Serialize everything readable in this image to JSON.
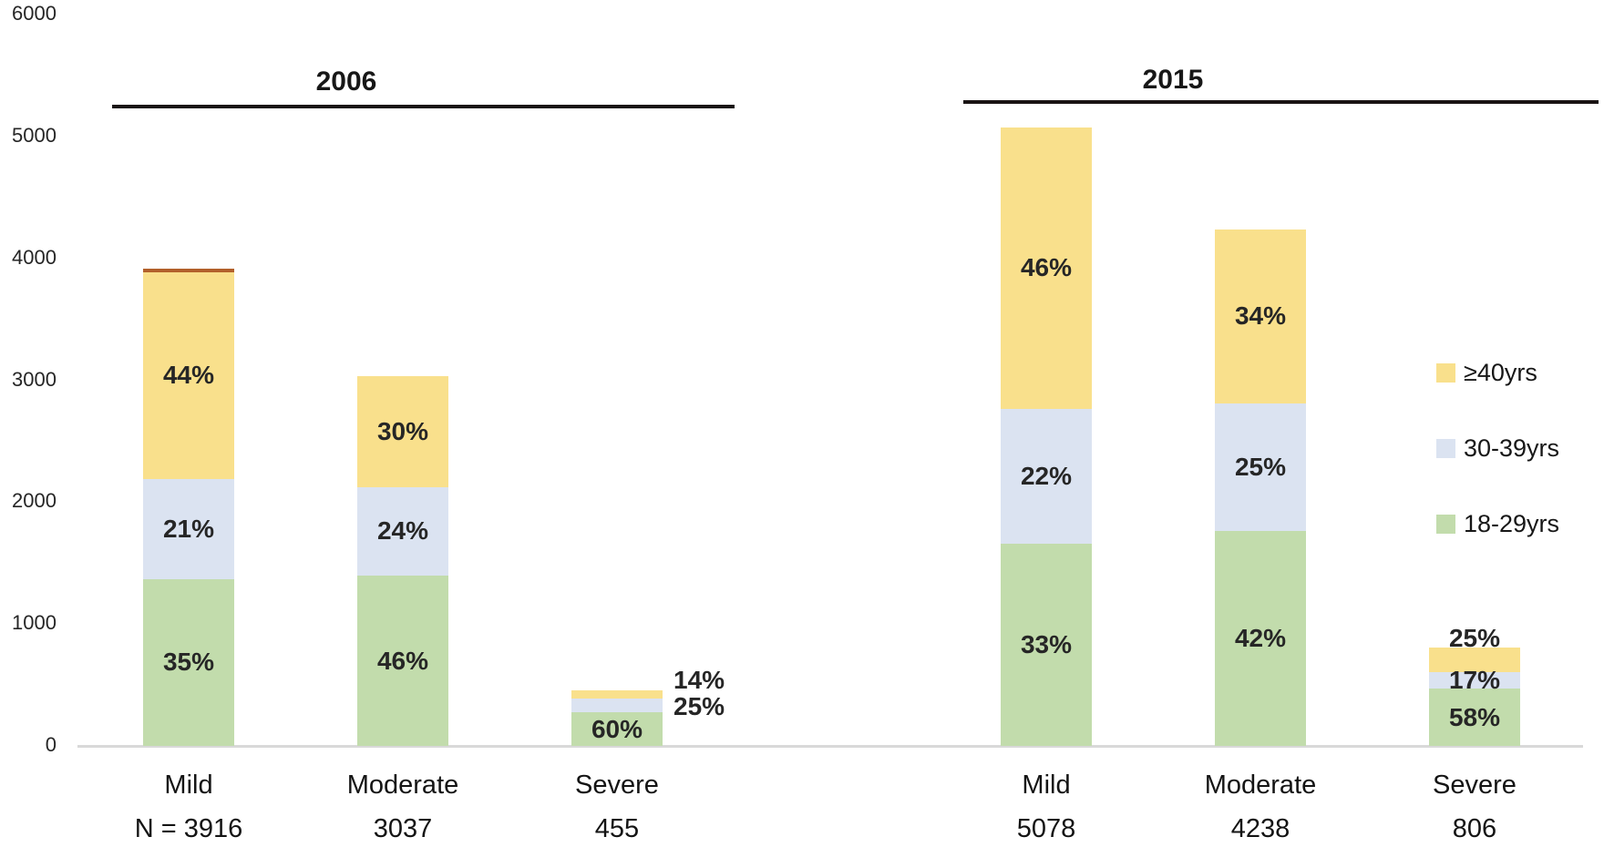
{
  "chart_data": {
    "type": "bar",
    "stacked": true,
    "grid": false,
    "legend_position": "right",
    "ylim": [
      0,
      6000
    ],
    "y_ticks": [
      0,
      1000,
      2000,
      3000,
      4000,
      5000,
      6000
    ],
    "legend": [
      {
        "label": "≥40yrs",
        "series": "≥40yrs",
        "color": "#f9e08c"
      },
      {
        "label": "30-39yrs",
        "series": "30-39yrs",
        "color": "#dbe3f1"
      },
      {
        "label": "18-29yrs",
        "series": "18-29yrs",
        "color": "#c2dcac"
      }
    ],
    "groups": [
      {
        "year": "2006",
        "bars": [
          {
            "category": "Mild",
            "n_label": "N = 3916",
            "n": 3916,
            "top_accent": true,
            "segments": [
              {
                "series": "18-29yrs",
                "pct": 35,
                "label": "35%",
                "label_pos": "inside"
              },
              {
                "series": "30-39yrs",
                "pct": 21,
                "label": "21%",
                "label_pos": "inside"
              },
              {
                "series": "≥40yrs",
                "pct": 44,
                "label": "44%",
                "label_pos": "inside"
              }
            ]
          },
          {
            "category": "Moderate",
            "n_label": "3037",
            "n": 3037,
            "top_accent": false,
            "segments": [
              {
                "series": "18-29yrs",
                "pct": 46,
                "label": "46%",
                "label_pos": "inside"
              },
              {
                "series": "30-39yrs",
                "pct": 24,
                "label": "24%",
                "label_pos": "inside"
              },
              {
                "series": "≥40yrs",
                "pct": 30,
                "label": "30%",
                "label_pos": "inside"
              }
            ]
          },
          {
            "category": "Severe",
            "n_label": "455",
            "n": 455,
            "top_accent": false,
            "segments": [
              {
                "series": "18-29yrs",
                "pct": 60,
                "label": "60%",
                "label_pos": "inside"
              },
              {
                "series": "30-39yrs",
                "pct": 25,
                "label": "25%",
                "label_pos": "right"
              },
              {
                "series": "≥40yrs",
                "pct": 14,
                "label": "14%",
                "label_pos": "right"
              }
            ]
          }
        ]
      },
      {
        "year": "2015",
        "bars": [
          {
            "category": "Mild",
            "n_label": "5078",
            "n": 5078,
            "top_accent": false,
            "segments": [
              {
                "series": "18-29yrs",
                "pct": 33,
                "label": "33%",
                "label_pos": "inside"
              },
              {
                "series": "30-39yrs",
                "pct": 22,
                "label": "22%",
                "label_pos": "inside"
              },
              {
                "series": "≥40yrs",
                "pct": 46,
                "label": "46%",
                "label_pos": "inside"
              }
            ]
          },
          {
            "category": "Moderate",
            "n_label": "4238",
            "n": 4238,
            "top_accent": false,
            "segments": [
              {
                "series": "18-29yrs",
                "pct": 42,
                "label": "42%",
                "label_pos": "inside"
              },
              {
                "series": "30-39yrs",
                "pct": 25,
                "label": "25%",
                "label_pos": "inside"
              },
              {
                "series": "≥40yrs",
                "pct": 34,
                "label": "34%",
                "label_pos": "inside"
              }
            ]
          },
          {
            "category": "Severe",
            "n_label": "806",
            "n": 806,
            "top_accent": false,
            "segments": [
              {
                "series": "18-29yrs",
                "pct": 58,
                "label": "58%",
                "label_pos": "inside"
              },
              {
                "series": "30-39yrs",
                "pct": 17,
                "label": "17%",
                "label_pos": "inside"
              },
              {
                "series": "≥40yrs",
                "pct": 25,
                "label": "25%",
                "label_pos": "top"
              }
            ]
          }
        ]
      }
    ]
  },
  "colors": {
    "bar_yellow": "#f9e08c",
    "bar_blue": "#dbe3f1",
    "bar_green": "#c2dcac",
    "mild2006_top_accent": "#b2602b",
    "axis_line": "#d9d9d9",
    "group_line": "#1a1313",
    "text": "#262626"
  }
}
